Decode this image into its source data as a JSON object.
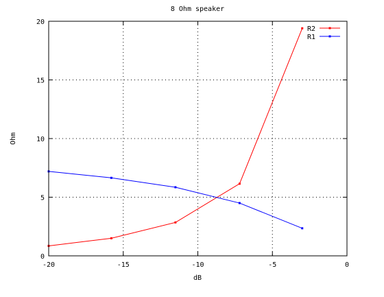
{
  "chart_data": {
    "type": "line",
    "title": "8 Ohm speaker",
    "xlabel": "dB",
    "ylabel": "Ohm",
    "xlim": [
      -20,
      0
    ],
    "ylim": [
      0,
      20
    ],
    "x_ticks": [
      -20,
      -15,
      -10,
      -5,
      0
    ],
    "y_ticks": [
      0,
      5,
      10,
      15,
      20
    ],
    "grid": true,
    "legend_position": "top-right",
    "series": [
      {
        "name": "R2",
        "color": "#ff0000",
        "x": [
          -20,
          -15.8,
          -11.5,
          -7.2,
          -3
        ],
        "y": [
          0.85,
          1.5,
          2.85,
          6.15,
          19.4
        ]
      },
      {
        "name": "R1",
        "color": "#0000ff",
        "x": [
          -20,
          -15.8,
          -11.5,
          -7.2,
          -3
        ],
        "y": [
          7.2,
          6.65,
          5.85,
          4.5,
          2.35
        ]
      }
    ]
  }
}
